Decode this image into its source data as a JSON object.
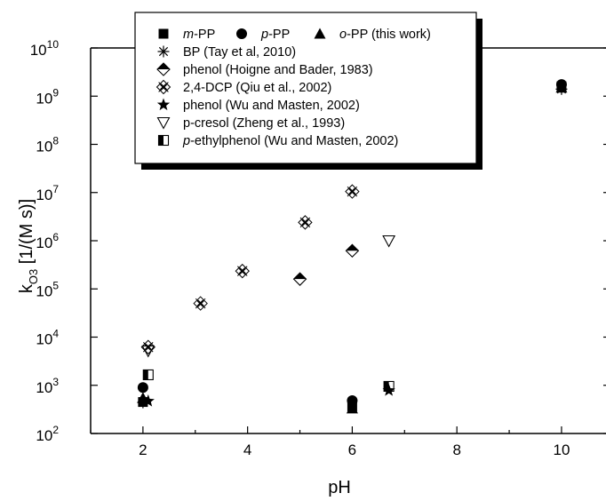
{
  "chart_data": {
    "type": "scatter",
    "title": "",
    "xlabel": "pH",
    "ylabel_main": "k",
    "ylabel_sub": "O3",
    "ylabel_rest": " [1/(M s)]",
    "xlim": [
      1,
      10.85
    ],
    "ylim_log10": [
      2,
      10
    ],
    "y_scale": "log",
    "x_ticks": [
      2,
      4,
      6,
      8,
      10
    ],
    "y_ticks": [
      {
        "exp": 2,
        "base": "10",
        "sup": "2"
      },
      {
        "exp": 3,
        "base": "10",
        "sup": "3"
      },
      {
        "exp": 4,
        "base": "10",
        "sup": "4"
      },
      {
        "exp": 5,
        "base": "10",
        "sup": "5"
      },
      {
        "exp": 6,
        "base": "10",
        "sup": "6"
      },
      {
        "exp": 7,
        "base": "10",
        "sup": "7"
      },
      {
        "exp": 8,
        "base": "10",
        "sup": "8"
      },
      {
        "exp": 9,
        "base": "10",
        "sup": "9"
      },
      {
        "exp": 10,
        "base": "10",
        "sup": "10"
      }
    ],
    "grid": false,
    "legend_position": "top-left",
    "series": [
      {
        "label_parts": [
          [
            "m",
            true
          ],
          [
            "-PP",
            false
          ]
        ],
        "marker": "square",
        "points": [
          [
            2,
            450
          ],
          [
            6,
            360
          ],
          [
            10,
            1600000000.0
          ]
        ]
      },
      {
        "label_parts": [
          [
            "p",
            true
          ],
          [
            "-PP",
            false
          ]
        ],
        "marker": "circle",
        "points": [
          [
            2,
            900
          ],
          [
            6,
            480
          ],
          [
            10,
            1750000000.0
          ]
        ]
      },
      {
        "label_parts": [
          [
            "o",
            true
          ],
          [
            "-PP (this work)",
            false
          ]
        ],
        "marker": "triangle",
        "points": [
          [
            2,
            550
          ],
          [
            6,
            330
          ],
          [
            10,
            1500000000.0
          ]
        ]
      },
      {
        "label_parts": [
          [
            "BP (Tay et al, 2010)",
            false
          ]
        ],
        "marker": "asterisk",
        "points": [
          [
            2,
            440
          ],
          [
            10,
            1400000000.0
          ]
        ]
      },
      {
        "label_parts": [
          [
            "phenol (Hoigne and Bader, 1983)",
            false
          ]
        ],
        "marker": "half-diamond",
        "points": [
          [
            5,
            160000.0
          ],
          [
            6,
            620000.0
          ]
        ]
      },
      {
        "label_parts": [
          [
            "2,4-DCP (Qiu et al., 2002)",
            false
          ]
        ],
        "marker": "crossed-diamond",
        "points": [
          [
            2.1,
            6200
          ],
          [
            3.1,
            50000.0
          ],
          [
            3.9,
            235000.0
          ],
          [
            5.1,
            2400000.0
          ],
          [
            6,
            10500000.0
          ]
        ]
      },
      {
        "label_parts": [
          [
            "phenol (Wu and Masten, 2002)",
            false
          ]
        ],
        "marker": "star",
        "points": [
          [
            2.1,
            470
          ],
          [
            6.7,
            780
          ]
        ]
      },
      {
        "label_parts": [
          [
            "p-cresol (Zheng et al., 1993)",
            false
          ]
        ],
        "marker": "down-triangle",
        "points": [
          [
            2.1,
            5200
          ],
          [
            6.7,
            1000000.0
          ]
        ]
      },
      {
        "label_parts": [
          [
            "p",
            true
          ],
          [
            "-ethylphenol (Wu and Masten, 2002)",
            false
          ]
        ],
        "marker": "half-square",
        "points": [
          [
            2.1,
            1650
          ],
          [
            6.7,
            950
          ]
        ]
      }
    ]
  }
}
